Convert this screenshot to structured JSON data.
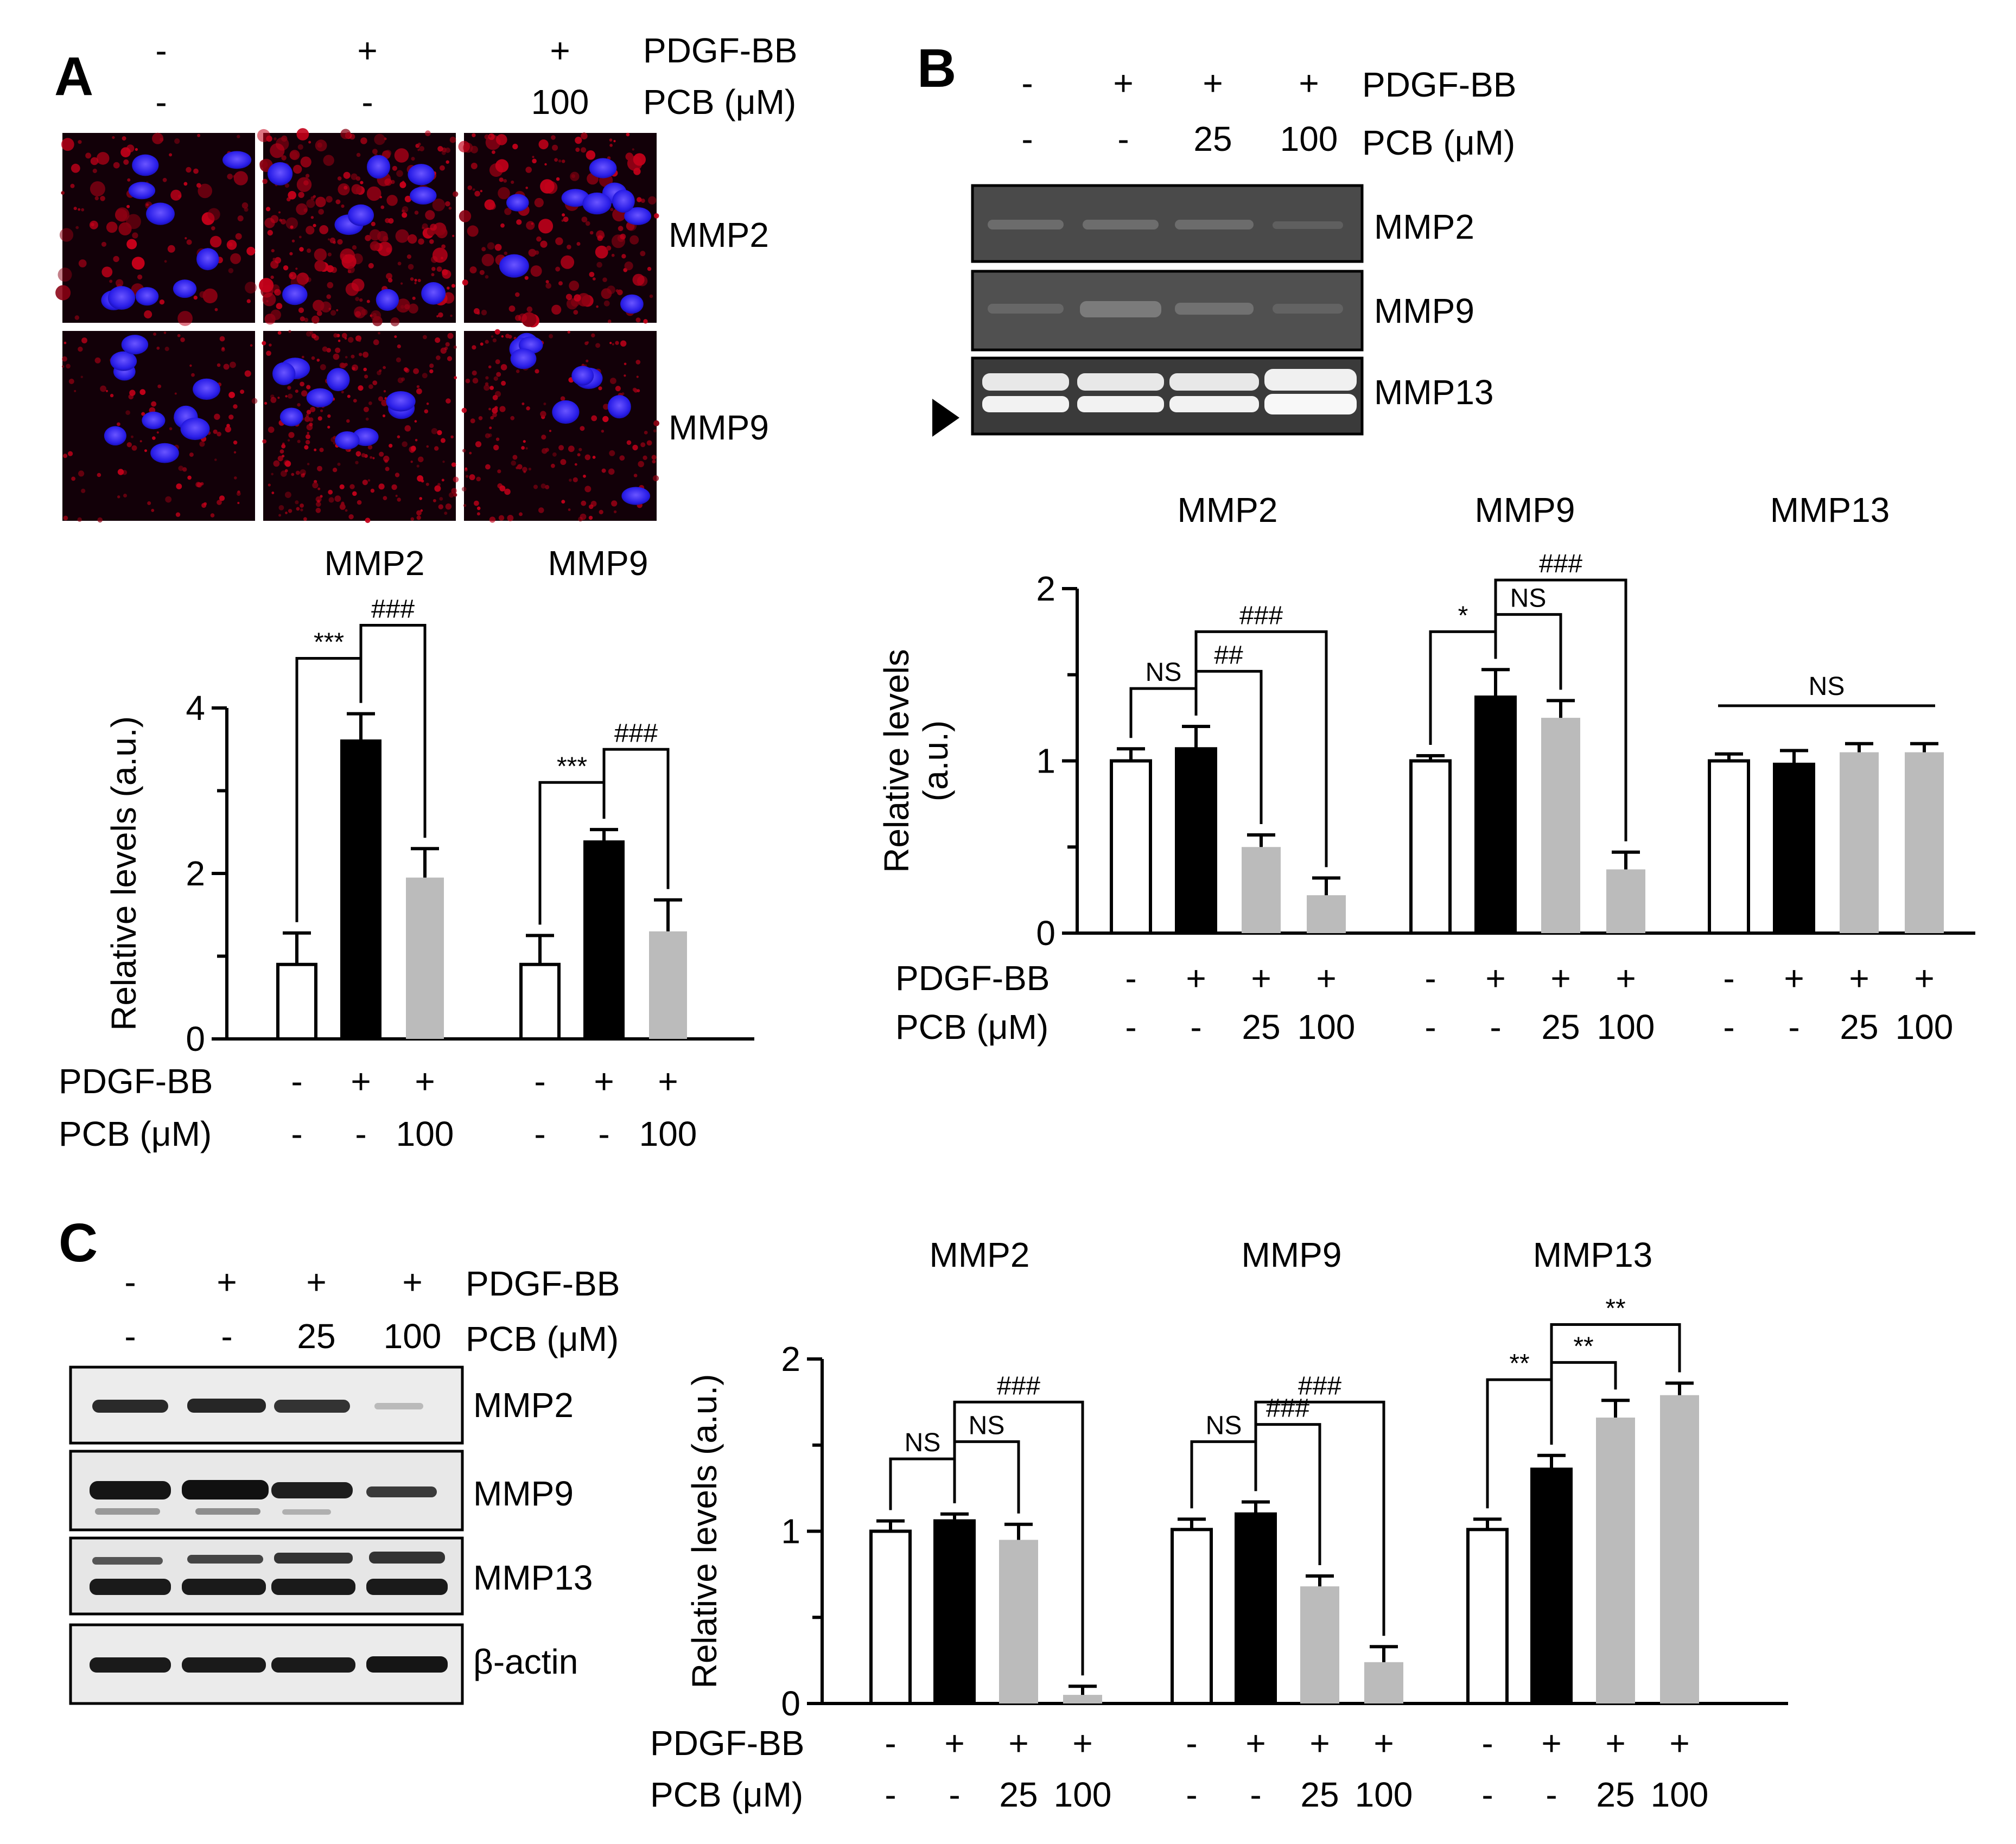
{
  "panels": {
    "A": {
      "letter": "A",
      "header": {
        "pdgf_label": "PDGF-BB",
        "pcb_label": "PCB (μM)",
        "pdgf_values": [
          "-",
          "+",
          "+"
        ],
        "pcb_values": [
          "-",
          "-",
          "100"
        ]
      },
      "micrograph_rows": [
        "MMP2",
        "MMP9"
      ],
      "chart_data": {
        "type": "bar",
        "ylabel": "Relative levels (a.u.)",
        "ylim": [
          0,
          4
        ],
        "yticks": [
          "0",
          "2",
          "4"
        ],
        "group_titles": [
          "MMP2",
          "MMP9"
        ],
        "pdgf_label": "PDGF-BB",
        "pcb_label": "PCB (μM)",
        "groups": [
          {
            "name": "MMP2",
            "pdgf": [
              "-",
              "+",
              "+"
            ],
            "pcb": [
              "-",
              "-",
              "100"
            ],
            "values": [
              0.9,
              3.6,
              1.95
            ],
            "errors": [
              0.38,
              0.33,
              0.35
            ],
            "fills": [
              "#ffffff",
              "#000000",
              "#bbbbbb"
            ],
            "brackets": [
              {
                "from": 0,
                "to": 1,
                "label": "***",
                "level": 4.6
              },
              {
                "from": 1,
                "to": 2,
                "label": "###",
                "level": 5.0
              }
            ]
          },
          {
            "name": "MMP9",
            "pdgf": [
              "-",
              "+",
              "+"
            ],
            "pcb": [
              "-",
              "-",
              "100"
            ],
            "values": [
              0.9,
              2.38,
              1.3
            ],
            "errors": [
              0.35,
              0.15,
              0.38
            ],
            "fills": [
              "#ffffff",
              "#000000",
              "#bbbbbb"
            ],
            "brackets": [
              {
                "from": 0,
                "to": 1,
                "label": "***",
                "level": 3.1
              },
              {
                "from": 1,
                "to": 2,
                "label": "###",
                "level": 3.5
              }
            ]
          }
        ]
      }
    },
    "B": {
      "letter": "B",
      "header": {
        "pdgf_label": "PDGF-BB",
        "pcb_label": "PCB (μM)",
        "pdgf_values": [
          "-",
          "+",
          "+",
          "+"
        ],
        "pcb_values": [
          "-",
          "-",
          "25",
          "100"
        ]
      },
      "blot_rows": [
        "MMP2",
        "MMP9",
        "MMP13"
      ],
      "chart_data": {
        "type": "bar",
        "ylabel": "Relative levels\n(a.u.)",
        "ylim": [
          0,
          2
        ],
        "yticks": [
          "0",
          "1",
          "2"
        ],
        "group_titles": [
          "MMP2",
          "MMP9",
          "MMP13"
        ],
        "pdgf_label": "PDGF-BB",
        "pcb_label": "PCB (μM)",
        "groups": [
          {
            "name": "MMP2",
            "pdgf": [
              "-",
              "+",
              "+",
              "+"
            ],
            "pcb": [
              "-",
              "-",
              "25",
              "100"
            ],
            "values": [
              1.0,
              1.07,
              0.5,
              0.22
            ],
            "errors": [
              0.07,
              0.13,
              0.07,
              0.1
            ],
            "fills": [
              "#ffffff",
              "#000000",
              "#bbbbbb",
              "#bbbbbb"
            ],
            "brackets": [
              {
                "from": 0,
                "to": 1,
                "label": "NS",
                "level": 1.42
              },
              {
                "from": 1,
                "to": 2,
                "label": "##",
                "level": 1.52
              },
              {
                "from": 1,
                "to": 3,
                "label": "###",
                "level": 1.75
              }
            ]
          },
          {
            "name": "MMP9",
            "pdgf": [
              "-",
              "+",
              "+",
              "+"
            ],
            "pcb": [
              "-",
              "-",
              "25",
              "100"
            ],
            "values": [
              1.0,
              1.37,
              1.25,
              0.37
            ],
            "errors": [
              0.03,
              0.16,
              0.1,
              0.1
            ],
            "fills": [
              "#ffffff",
              "#000000",
              "#bbbbbb",
              "#bbbbbb"
            ],
            "brackets": [
              {
                "from": 0,
                "to": 1,
                "label": "*",
                "level": 1.75
              },
              {
                "from": 1,
                "to": 2,
                "label": "NS",
                "level": 1.85
              },
              {
                "from": 1,
                "to": 3,
                "label": "###",
                "level": 2.05
              }
            ]
          },
          {
            "name": "MMP13",
            "pdgf": [
              "-",
              "+",
              "+",
              "+"
            ],
            "pcb": [
              "-",
              "-",
              "25",
              "100"
            ],
            "values": [
              1.0,
              0.98,
              1.05,
              1.05
            ],
            "errors": [
              0.04,
              0.08,
              0.05,
              0.05
            ],
            "fills": [
              "#ffffff",
              "#000000",
              "#bbbbbb",
              "#bbbbbb"
            ],
            "ns_line": {
              "label": "NS",
              "level": 1.32
            }
          }
        ]
      }
    },
    "C": {
      "letter": "C",
      "header": {
        "pdgf_label": "PDGF-BB",
        "pcb_label": "PCB (μM)",
        "pdgf_values": [
          "-",
          "+",
          "+",
          "+"
        ],
        "pcb_values": [
          "-",
          "-",
          "25",
          "100"
        ]
      },
      "blot_rows": [
        "MMP2",
        "MMP9",
        "MMP13",
        "β-actin"
      ],
      "chart_data": {
        "type": "bar",
        "ylabel": "Relative levels (a.u.)",
        "ylim": [
          0,
          2
        ],
        "yticks": [
          "0",
          "1",
          "2"
        ],
        "group_titles": [
          "MMP2",
          "MMP9",
          "MMP13"
        ],
        "pdgf_label": "PDGF-BB",
        "pcb_label": "PCB (μM)",
        "groups": [
          {
            "name": "MMP2",
            "pdgf": [
              "-",
              "+",
              "+",
              "+"
            ],
            "pcb": [
              "-",
              "-",
              "25",
              "100"
            ],
            "values": [
              1.0,
              1.06,
              0.95,
              0.05
            ],
            "errors": [
              0.06,
              0.04,
              0.09,
              0.05
            ],
            "fills": [
              "#ffffff",
              "#000000",
              "#bbbbbb",
              "#bbbbbb"
            ],
            "brackets": [
              {
                "from": 0,
                "to": 1,
                "label": "NS",
                "level": 1.42
              },
              {
                "from": 1,
                "to": 2,
                "label": "NS",
                "level": 1.52
              },
              {
                "from": 1,
                "to": 3,
                "label": "###",
                "level": 1.75
              }
            ]
          },
          {
            "name": "MMP9",
            "pdgf": [
              "-",
              "+",
              "+",
              "+"
            ],
            "pcb": [
              "-",
              "-",
              "25",
              "100"
            ],
            "values": [
              1.01,
              1.1,
              0.68,
              0.24
            ],
            "errors": [
              0.06,
              0.07,
              0.06,
              0.09
            ],
            "fills": [
              "#ffffff",
              "#000000",
              "#bbbbbb",
              "#bbbbbb"
            ],
            "brackets": [
              {
                "from": 0,
                "to": 1,
                "label": "NS",
                "level": 1.52
              },
              {
                "from": 1,
                "to": 2,
                "label": "###",
                "level": 1.62
              },
              {
                "from": 1,
                "to": 3,
                "label": "###",
                "level": 1.75
              }
            ]
          },
          {
            "name": "MMP13",
            "pdgf": [
              "-",
              "+",
              "+",
              "+"
            ],
            "pcb": [
              "-",
              "-",
              "25",
              "100"
            ],
            "values": [
              1.01,
              1.36,
              1.66,
              1.79
            ],
            "errors": [
              0.06,
              0.08,
              0.1,
              0.07
            ],
            "fills": [
              "#ffffff",
              "#000000",
              "#bbbbbb",
              "#bbbbbb"
            ],
            "brackets": [
              {
                "from": 0,
                "to": 1,
                "label": "**",
                "level": 1.88
              },
              {
                "from": 1,
                "to": 2,
                "label": "**",
                "level": 1.98
              },
              {
                "from": 1,
                "to": 3,
                "label": "**",
                "level": 2.2
              }
            ]
          }
        ]
      }
    }
  }
}
